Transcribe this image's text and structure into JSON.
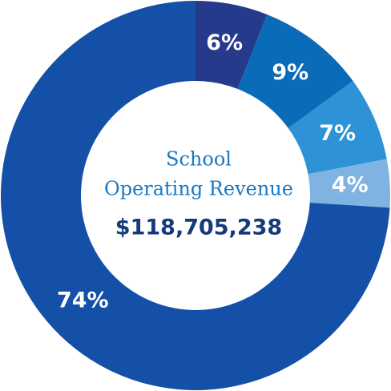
{
  "chart_data": {
    "type": "donut",
    "center_text": [
      "School",
      "Operating Revenue"
    ],
    "total": "$118,705,238",
    "values": [
      6,
      9,
      7,
      4,
      74
    ],
    "value_labels": [
      "6%",
      "9%",
      "7%",
      "4%",
      "74%"
    ],
    "colors": [
      "#263a8c",
      "#0a6bb8",
      "#2e92d6",
      "#7eb3e2",
      "#1550a8"
    ]
  }
}
